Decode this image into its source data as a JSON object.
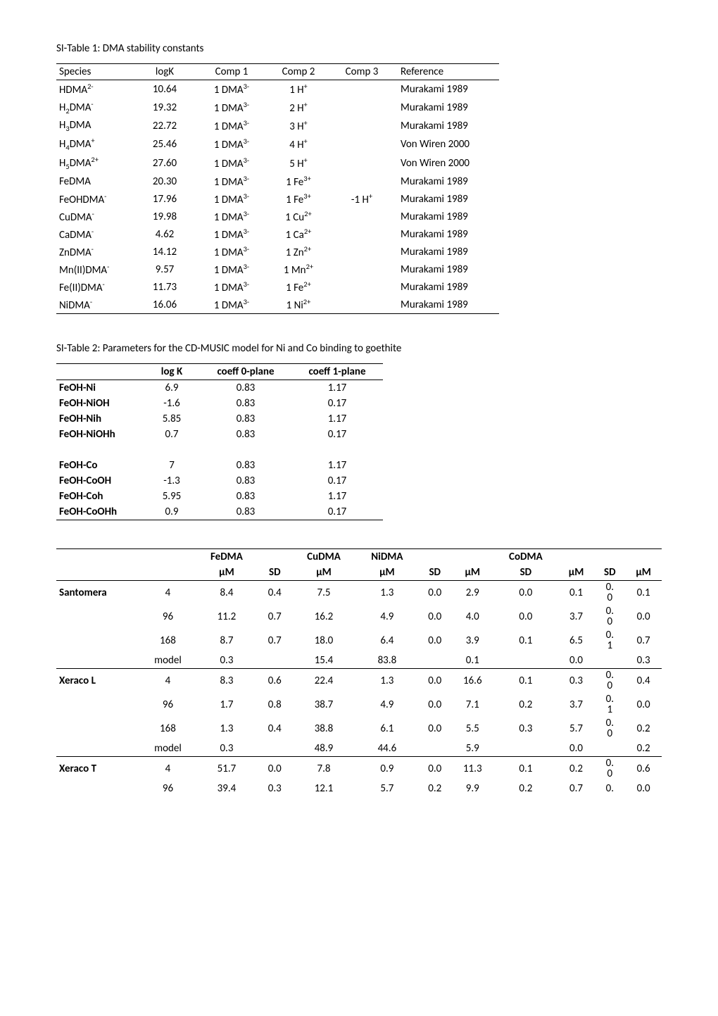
{
  "table1": {
    "caption": "SI-Table 1: DMA stability constants",
    "columns": [
      "Species",
      "logK",
      "Comp 1",
      "Comp 2",
      "Comp 3",
      "Reference"
    ],
    "rows": [
      {
        "species": "HDMA",
        "charge": "2-",
        "logK": "10.64",
        "c1": "1 DMA",
        "c1c": "3-",
        "c2": "1 H",
        "c2c": "+",
        "c3": "",
        "ref": "Murakami 1989"
      },
      {
        "species": "H₂DMA",
        "charge": "-",
        "logK": "19.32",
        "c1": "1 DMA",
        "c1c": "3-",
        "c2": "2 H",
        "c2c": "+",
        "c3": "",
        "ref": "Murakami 1989"
      },
      {
        "species": "H₃DMA",
        "charge": "",
        "logK": "22.72",
        "c1": "1 DMA",
        "c1c": "3-",
        "c2": "3 H",
        "c2c": "+",
        "c3": "",
        "ref": "Murakami 1989"
      },
      {
        "species": "H₄DMA",
        "charge": "+",
        "logK": "25.46",
        "c1": "1 DMA",
        "c1c": "3-",
        "c2": "4 H",
        "c2c": "+",
        "c3": "",
        "ref": "Von Wiren 2000"
      },
      {
        "species": "H₅DMA",
        "charge": "2+",
        "logK": "27.60",
        "c1": "1 DMA",
        "c1c": "3-",
        "c2": "5 H",
        "c2c": "+",
        "c3": "",
        "ref": "Von Wiren 2000"
      },
      {
        "species": "FeDMA",
        "charge": "",
        "logK": "20.30",
        "c1": "1 DMA",
        "c1c": "3-",
        "c2": "1 Fe",
        "c2c": "3+",
        "c3": "",
        "ref": "Murakami 1989"
      },
      {
        "species": "FeOHDMA",
        "charge": "-",
        "logK": "17.96",
        "c1": "1 DMA",
        "c1c": "3-",
        "c2": "1 Fe",
        "c2c": "3+",
        "c3": "-1 H",
        "c3c": "+",
        "ref": "Murakami 1989"
      },
      {
        "species": "CuDMA",
        "charge": "-",
        "logK": "19.98",
        "c1": "1 DMA",
        "c1c": "3-",
        "c2": "1 Cu",
        "c2c": "2+",
        "c3": "",
        "ref": "Murakami 1989"
      },
      {
        "species": "CaDMA",
        "charge": "-",
        "logK": "4.62",
        "c1": "1 DMA",
        "c1c": "3-",
        "c2": "1 Ca",
        "c2c": "2+",
        "c3": "",
        "ref": "Murakami 1989"
      },
      {
        "species": "ZnDMA",
        "charge": "-",
        "logK": "14.12",
        "c1": "1 DMA",
        "c1c": "3-",
        "c2": "1 Zn",
        "c2c": "2+",
        "c3": "",
        "ref": "Murakami 1989"
      },
      {
        "species": "Mn(II)DMA",
        "charge": "-",
        "logK": "9.57",
        "c1": "1 DMA",
        "c1c": "3-",
        "c2": "1 Mn",
        "c2c": "2+",
        "c3": "",
        "ref": "Murakami 1989"
      },
      {
        "species": "Fe(II)DMA",
        "charge": "-",
        "logK": "11.73",
        "c1": "1 DMA",
        "c1c": "3-",
        "c2": "1 Fe",
        "c2c": "2+",
        "c3": "",
        "ref": "Murakami 1989"
      },
      {
        "species": "NiDMA",
        "charge": "-",
        "logK": "16.06",
        "c1": "1 DMA",
        "c1c": "3-",
        "c2": "1 Ni",
        "c2c": "2+",
        "c3": "",
        "ref": "Murakami 1989"
      }
    ]
  },
  "table2": {
    "caption": "SI-Table 2: Parameters for the CD-MUSIC model for Ni and Co binding to goethite",
    "columns": [
      "",
      "log K",
      "coeff 0-plane",
      "coeff 1-plane"
    ],
    "rows": [
      {
        "name": "FeOH-Ni",
        "logK": "6.9",
        "c0": "0.83",
        "c1": "1.17"
      },
      {
        "name": "FeOH-NiOH",
        "logK": "-1.6",
        "c0": "0.83",
        "c1": "0.17"
      },
      {
        "name": "FeOH-Nih",
        "logK": "5.85",
        "c0": "0.83",
        "c1": "1.17"
      },
      {
        "name": "FeOH-NiOHh",
        "logK": "0.7",
        "c0": "0.83",
        "c1": "0.17",
        "gap": true
      },
      {
        "name": "FeOH-Co",
        "logK": "7",
        "c0": "0.83",
        "c1": "1.17"
      },
      {
        "name": "FeOH-CoOH",
        "logK": "-1.3",
        "c0": "0.83",
        "c1": "0.17"
      },
      {
        "name": "FeOH-Coh",
        "logK": "5.95",
        "c0": "0.83",
        "c1": "1.17"
      },
      {
        "name": "FeOH-CoOHh",
        "logK": "0.9",
        "c0": "0.83",
        "c1": "0.17"
      }
    ]
  },
  "table3": {
    "groupHeaders": [
      "",
      "",
      "FeDMA",
      "",
      "CuDMA",
      "NiDMA",
      "",
      "",
      "CoDMA",
      "",
      "",
      ""
    ],
    "subHeaders": [
      "",
      "",
      "µM",
      "SD",
      "µM",
      "µM",
      "SD",
      "µM",
      "SD",
      "µM",
      "SD",
      "µM"
    ],
    "sections": [
      {
        "name": "Santomera",
        "rows": [
          {
            "label": "4",
            "v": [
              "8.4",
              "0.4",
              "7.5",
              "1.3",
              "0.0",
              "2.9",
              "0.0",
              "0.1",
              "0.\n0",
              "0.1"
            ]
          },
          {
            "label": "96",
            "v": [
              "11.2",
              "0.7",
              "16.2",
              "4.9",
              "0.0",
              "4.0",
              "0.0",
              "3.7",
              "0.\n0",
              "0.0"
            ]
          },
          {
            "label": "168",
            "v": [
              "8.7",
              "0.7",
              "18.0",
              "6.4",
              "0.0",
              "3.9",
              "0.1",
              "6.5",
              "0.\n1",
              "0.7"
            ]
          },
          {
            "label": "model",
            "v": [
              "0.3",
              "",
              "15.4",
              "83.8",
              "",
              "0.1",
              "",
              "0.0",
              "",
              "0.3"
            ]
          }
        ]
      },
      {
        "name": "Xeraco L",
        "rows": [
          {
            "label": "4",
            "v": [
              "8.3",
              "0.6",
              "22.4",
              "1.3",
              "0.0",
              "16.6",
              "0.1",
              "0.3",
              "0.\n0",
              "0.4"
            ]
          },
          {
            "label": "96",
            "v": [
              "1.7",
              "0.8",
              "38.7",
              "4.9",
              "0.0",
              "7.1",
              "0.2",
              "3.7",
              "0.\n1",
              "0.0"
            ]
          },
          {
            "label": "168",
            "v": [
              "1.3",
              "0.4",
              "38.8",
              "6.1",
              "0.0",
              "5.5",
              "0.3",
              "5.7",
              "0.\n0",
              "0.2"
            ]
          },
          {
            "label": "model",
            "v": [
              "0.3",
              "",
              "48.9",
              "44.6",
              "",
              "5.9",
              "",
              "0.0",
              "",
              "0.2"
            ]
          }
        ]
      },
      {
        "name": "Xeraco T",
        "rows": [
          {
            "label": "4",
            "v": [
              "51.7",
              "0.0",
              "7.8",
              "0.9",
              "0.0",
              "11.3",
              "0.1",
              "0.2",
              "0.\n0",
              "0.6"
            ]
          },
          {
            "label": "96",
            "v": [
              "39.4",
              "0.3",
              "12.1",
              "5.7",
              "0.2",
              "9.9",
              "0.2",
              "0.7",
              "0.",
              "0.0"
            ]
          }
        ]
      }
    ]
  }
}
